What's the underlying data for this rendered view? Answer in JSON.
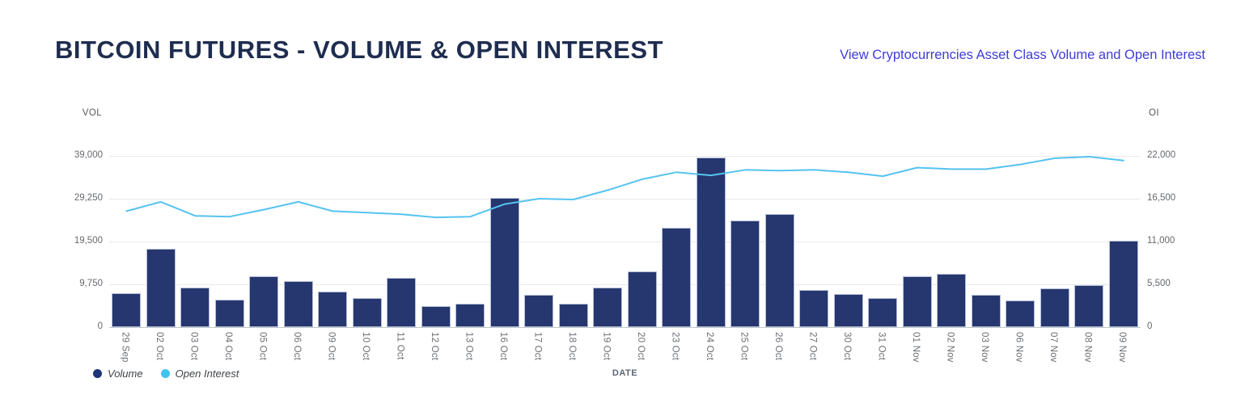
{
  "header": {
    "title": "BITCOIN FUTURES - VOLUME & OPEN INTEREST",
    "link_text": "View Cryptocurrencies Asset Class Volume and Open Interest"
  },
  "colors": {
    "title": "#1e2d4f",
    "link": "#3e3cd8",
    "volume_bar": "#26366f",
    "bar_border": "#b3bdd8",
    "open_interest_line": "#55c3f0",
    "legend_volume_dot": "#1d3576",
    "legend_open_interest_dot": "#41c3f2"
  },
  "chart_data": {
    "type": "bar",
    "subtype": "dual-axis bar + line",
    "categories": [
      "29 Sep",
      "02 Oct",
      "03 Oct",
      "04 Oct",
      "05 Oct",
      "06 Oct",
      "09 Oct",
      "10 Oct",
      "11 Oct",
      "12 Oct",
      "13 Oct",
      "16 Oct",
      "17 Oct",
      "18 Oct",
      "19 Oct",
      "20 Oct",
      "23 Oct",
      "24 Oct",
      "25 Oct",
      "26 Oct",
      "27 Oct",
      "30 Oct",
      "31 Oct",
      "01 Nov",
      "02 Nov",
      "03 Nov",
      "06 Nov",
      "07 Nov",
      "08 Nov",
      "09 Nov"
    ],
    "series": [
      {
        "name": "Volume",
        "type": "bar",
        "axis": "left",
        "color": "#26366f",
        "values": [
          7800,
          17900,
          9100,
          6200,
          11600,
          10400,
          8100,
          6700,
          11200,
          4800,
          5400,
          29400,
          7300,
          5300,
          9100,
          12700,
          22600,
          38700,
          24300,
          25700,
          8400,
          7500,
          6600,
          11500,
          12100,
          7400,
          6000,
          8900,
          9600,
          19700
        ]
      },
      {
        "name": "Open Interest",
        "type": "line",
        "axis": "right",
        "color": "#55c3f0",
        "values": [
          14900,
          16100,
          14300,
          14200,
          15100,
          16100,
          14900,
          14700,
          14500,
          14100,
          14200,
          15800,
          16500,
          16400,
          17600,
          19000,
          19900,
          19500,
          20200,
          20100,
          20200,
          19900,
          19400,
          20500,
          20300,
          20300,
          20900,
          21700,
          21900,
          21400
        ]
      }
    ],
    "left_axis": {
      "label": "VOL",
      "ticks": [
        "39,000",
        "29,250",
        "19,500",
        "9,750",
        "0"
      ],
      "min": 0,
      "max": 39000
    },
    "right_axis": {
      "label": "OI",
      "ticks": [
        "22,000",
        "16,500",
        "11,000",
        "5,500",
        "0"
      ],
      "min": 0,
      "max": 22000
    },
    "xlabel": "DATE",
    "grid": true,
    "legend_position": "bottom-left",
    "legend": [
      {
        "label": "Volume",
        "color": "#1d3576"
      },
      {
        "label": "Open Interest",
        "color": "#41c3f2"
      }
    ]
  }
}
